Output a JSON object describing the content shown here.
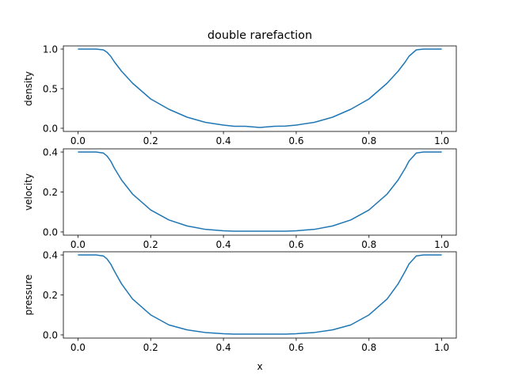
{
  "chart_data": {
    "type": "line",
    "title": "double rarefaction",
    "xlabel": "x",
    "grid": false,
    "panels": [
      {
        "ylabel": "density",
        "xlim": [
          -0.04,
          1.04
        ],
        "ylim": [
          -0.04,
          1.04
        ],
        "xticks": [
          {
            "value": 0.0,
            "label": "0.0"
          },
          {
            "value": 0.2,
            "label": "0.2"
          },
          {
            "value": 0.4,
            "label": "0.4"
          },
          {
            "value": 0.6,
            "label": "0.6"
          },
          {
            "value": 0.8,
            "label": "0.8"
          },
          {
            "value": 1.0,
            "label": "1.0"
          }
        ],
        "yticks": [
          {
            "value": 0.0,
            "label": "0.0"
          },
          {
            "value": 0.5,
            "label": "0.5"
          },
          {
            "value": 1.0,
            "label": "1.0"
          }
        ],
        "series": [
          {
            "color": "#1f77b4",
            "x": [
              0.0,
              0.05,
              0.07,
              0.08,
              0.09,
              0.1,
              0.12,
              0.15,
              0.2,
              0.25,
              0.3,
              0.35,
              0.4,
              0.43,
              0.46,
              0.48,
              0.5,
              0.52,
              0.54,
              0.57,
              0.6,
              0.65,
              0.7,
              0.75,
              0.8,
              0.85,
              0.88,
              0.9,
              0.91,
              0.93,
              0.95,
              1.0
            ],
            "y": [
              1.0,
              1.0,
              0.99,
              0.96,
              0.91,
              0.84,
              0.72,
              0.57,
              0.37,
              0.24,
              0.14,
              0.075,
              0.04,
              0.025,
              0.025,
              0.018,
              0.01,
              0.018,
              0.025,
              0.028,
              0.04,
              0.075,
              0.14,
              0.24,
              0.37,
              0.57,
              0.72,
              0.84,
              0.91,
              0.99,
              1.0,
              1.0
            ]
          }
        ]
      },
      {
        "ylabel": "velocity",
        "xlim": [
          -0.04,
          1.04
        ],
        "ylim": [
          -0.016,
          0.416
        ],
        "xticks": [
          {
            "value": 0.0,
            "label": "0.0"
          },
          {
            "value": 0.2,
            "label": "0.2"
          },
          {
            "value": 0.4,
            "label": "0.4"
          },
          {
            "value": 0.6,
            "label": "0.6"
          },
          {
            "value": 0.8,
            "label": "0.8"
          },
          {
            "value": 1.0,
            "label": "1.0"
          }
        ],
        "yticks": [
          {
            "value": 0.0,
            "label": "0.0"
          },
          {
            "value": 0.2,
            "label": "0.2"
          },
          {
            "value": 0.4,
            "label": "0.4"
          }
        ],
        "series": [
          {
            "color": "#1f77b4",
            "x": [
              0.0,
              0.05,
              0.07,
              0.08,
              0.09,
              0.1,
              0.12,
              0.15,
              0.2,
              0.25,
              0.3,
              0.35,
              0.4,
              0.43,
              0.5,
              0.57,
              0.6,
              0.65,
              0.7,
              0.75,
              0.8,
              0.85,
              0.88,
              0.9,
              0.91,
              0.93,
              0.95,
              1.0
            ],
            "y": [
              0.4,
              0.4,
              0.395,
              0.38,
              0.355,
              0.32,
              0.26,
              0.19,
              0.11,
              0.06,
              0.03,
              0.013,
              0.006,
              0.004,
              0.004,
              0.004,
              0.006,
              0.013,
              0.03,
              0.06,
              0.11,
              0.19,
              0.26,
              0.32,
              0.355,
              0.395,
              0.4,
              0.4
            ]
          }
        ]
      },
      {
        "ylabel": "pressure",
        "xlim": [
          -0.04,
          1.04
        ],
        "ylim": [
          -0.016,
          0.416
        ],
        "xticks": [
          {
            "value": 0.0,
            "label": "0.0"
          },
          {
            "value": 0.2,
            "label": "0.2"
          },
          {
            "value": 0.4,
            "label": "0.4"
          },
          {
            "value": 0.6,
            "label": "0.6"
          },
          {
            "value": 0.8,
            "label": "0.8"
          },
          {
            "value": 1.0,
            "label": "1.0"
          }
        ],
        "yticks": [
          {
            "value": 0.0,
            "label": "0.0"
          },
          {
            "value": 0.2,
            "label": "0.2"
          },
          {
            "value": 0.4,
            "label": "0.4"
          }
        ],
        "series": [
          {
            "color": "#1f77b4",
            "x": [
              0.0,
              0.05,
              0.07,
              0.08,
              0.09,
              0.1,
              0.12,
              0.15,
              0.2,
              0.25,
              0.3,
              0.35,
              0.4,
              0.43,
              0.5,
              0.57,
              0.6,
              0.65,
              0.7,
              0.75,
              0.8,
              0.85,
              0.88,
              0.9,
              0.91,
              0.93,
              0.95,
              1.0
            ],
            "y": [
              0.4,
              0.4,
              0.395,
              0.38,
              0.355,
              0.32,
              0.255,
              0.18,
              0.1,
              0.05,
              0.025,
              0.012,
              0.006,
              0.004,
              0.004,
              0.004,
              0.006,
              0.012,
              0.025,
              0.05,
              0.1,
              0.18,
              0.255,
              0.32,
              0.355,
              0.395,
              0.4,
              0.4
            ]
          }
        ]
      }
    ]
  }
}
